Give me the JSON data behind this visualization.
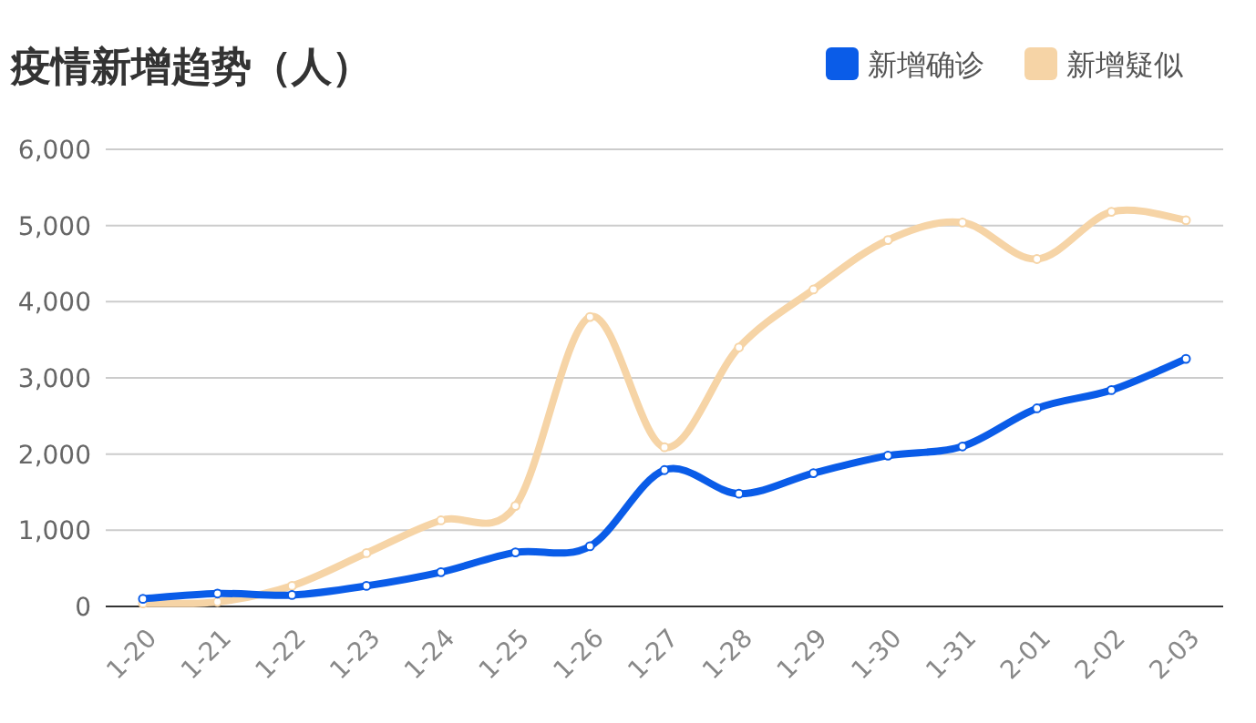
{
  "chart_data": {
    "type": "line",
    "title": "疫情新增趋势（人）",
    "categories": [
      "1-20",
      "1-21",
      "1-22",
      "1-23",
      "1-24",
      "1-25",
      "1-26",
      "1-27",
      "1-28",
      "1-29",
      "1-30",
      "1-31",
      "2-01",
      "2-02",
      "2-03"
    ],
    "series": [
      {
        "name": "新增确诊",
        "color": "#0a5ce8",
        "values": [
          100,
          170,
          150,
          270,
          450,
          710,
          790,
          1790,
          1480,
          1750,
          1980,
          2100,
          2600,
          2840,
          3250
        ]
      },
      {
        "name": "新增疑似",
        "color": "#f6d4a6",
        "values": [
          40,
          60,
          270,
          700,
          1130,
          1320,
          3800,
          2090,
          3400,
          4160,
          4810,
          5040,
          4560,
          5180,
          5070
        ]
      }
    ],
    "ylim": [
      0,
      6000
    ],
    "yticks": [
      {
        "value": 0,
        "label": "0"
      },
      {
        "value": 1000,
        "label": "1,000"
      },
      {
        "value": 2000,
        "label": "2,000"
      },
      {
        "value": 3000,
        "label": "3,000"
      },
      {
        "value": 4000,
        "label": "4,000"
      },
      {
        "value": 5000,
        "label": "5,000"
      },
      {
        "value": 6000,
        "label": "6,000"
      }
    ],
    "grid": "y",
    "legend": "top right",
    "marker": "circle",
    "line_style": "solid"
  }
}
